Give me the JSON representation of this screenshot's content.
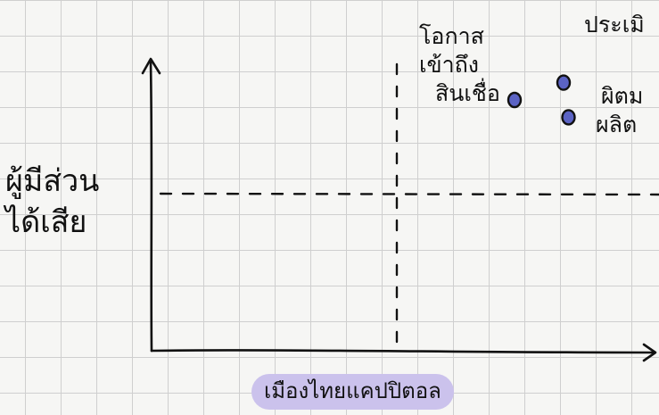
{
  "y_axis_label": {
    "line1": "ผู้มีส่วน",
    "line2": "ได้เสีย"
  },
  "x_axis_label": "เมืองไทยแคปปิตอล",
  "annotations": {
    "top_left_point": {
      "line1": "โอกาส",
      "line2": "เข้าถึง",
      "line3": "สินเชื่อ"
    },
    "top_right_point": "ประเมิ",
    "right_point": {
      "line1": "ผิตม",
      "line2": "ผลิต"
    }
  },
  "colors": {
    "point_fill": "#5b63c4",
    "point_stroke": "#111111",
    "highlight": "#cbc2ec",
    "ink": "#111111"
  },
  "chart_data": {
    "type": "scatter",
    "title": "",
    "xlabel": "เมืองไทยแคปปิตอล",
    "ylabel": "ผู้มีส่วนได้เสีย",
    "grid": true,
    "legend": "none",
    "quadrant_lines": true,
    "points": [
      {
        "label": "โอกาส เข้าถึง สินเชื่อ",
        "x": 0.74,
        "y": 0.87
      },
      {
        "label": "ประเมิ",
        "x": 0.84,
        "y": 0.93
      },
      {
        "label": "ผิตม ผลิต",
        "x": 0.85,
        "y": 0.81
      }
    ],
    "xlim": [
      0,
      1
    ],
    "ylim": [
      0,
      1
    ]
  }
}
